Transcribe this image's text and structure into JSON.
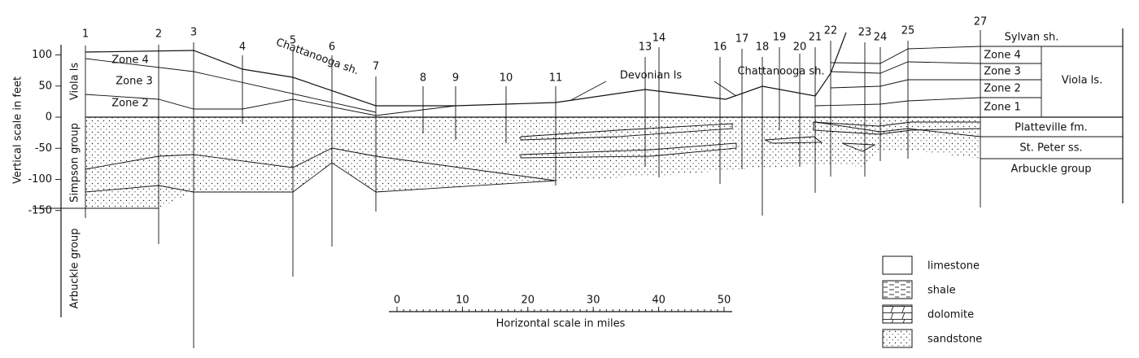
{
  "vertical_scale": {
    "label": "Vertical scale in feet",
    "ticks": [
      100,
      50,
      0,
      -50,
      -100,
      -150
    ]
  },
  "horizontal_scale": {
    "label": "Horizontal scale in miles",
    "ticks": [
      0,
      10,
      20,
      30,
      40,
      50
    ]
  },
  "wells": [
    "1",
    "2",
    "3",
    "4",
    "5",
    "6",
    "7",
    "8",
    "9",
    "10",
    "11",
    "13",
    "14",
    "16",
    "17",
    "18",
    "19",
    "20",
    "21",
    "22",
    "23",
    "24",
    "25",
    "27"
  ],
  "left_units": [
    "Viola ls",
    "Simpson group",
    "Arbuckle group"
  ],
  "left_zones": [
    "Zone 4",
    "Zone 3",
    "Zone 2"
  ],
  "section_labels": [
    "Chattanooga sh.",
    "Devonian ls",
    "Chattanooga sh."
  ],
  "right_units": [
    "Sylvan sh.",
    "Zone 4",
    "Zone 3",
    "Zone 2",
    "Zone 1",
    "Viola ls.",
    "Platteville fm.",
    "St. Peter ss.",
    "Arbuckle group"
  ],
  "legend": [
    "limestone",
    "shale",
    "dolomite",
    "sandstone"
  ]
}
